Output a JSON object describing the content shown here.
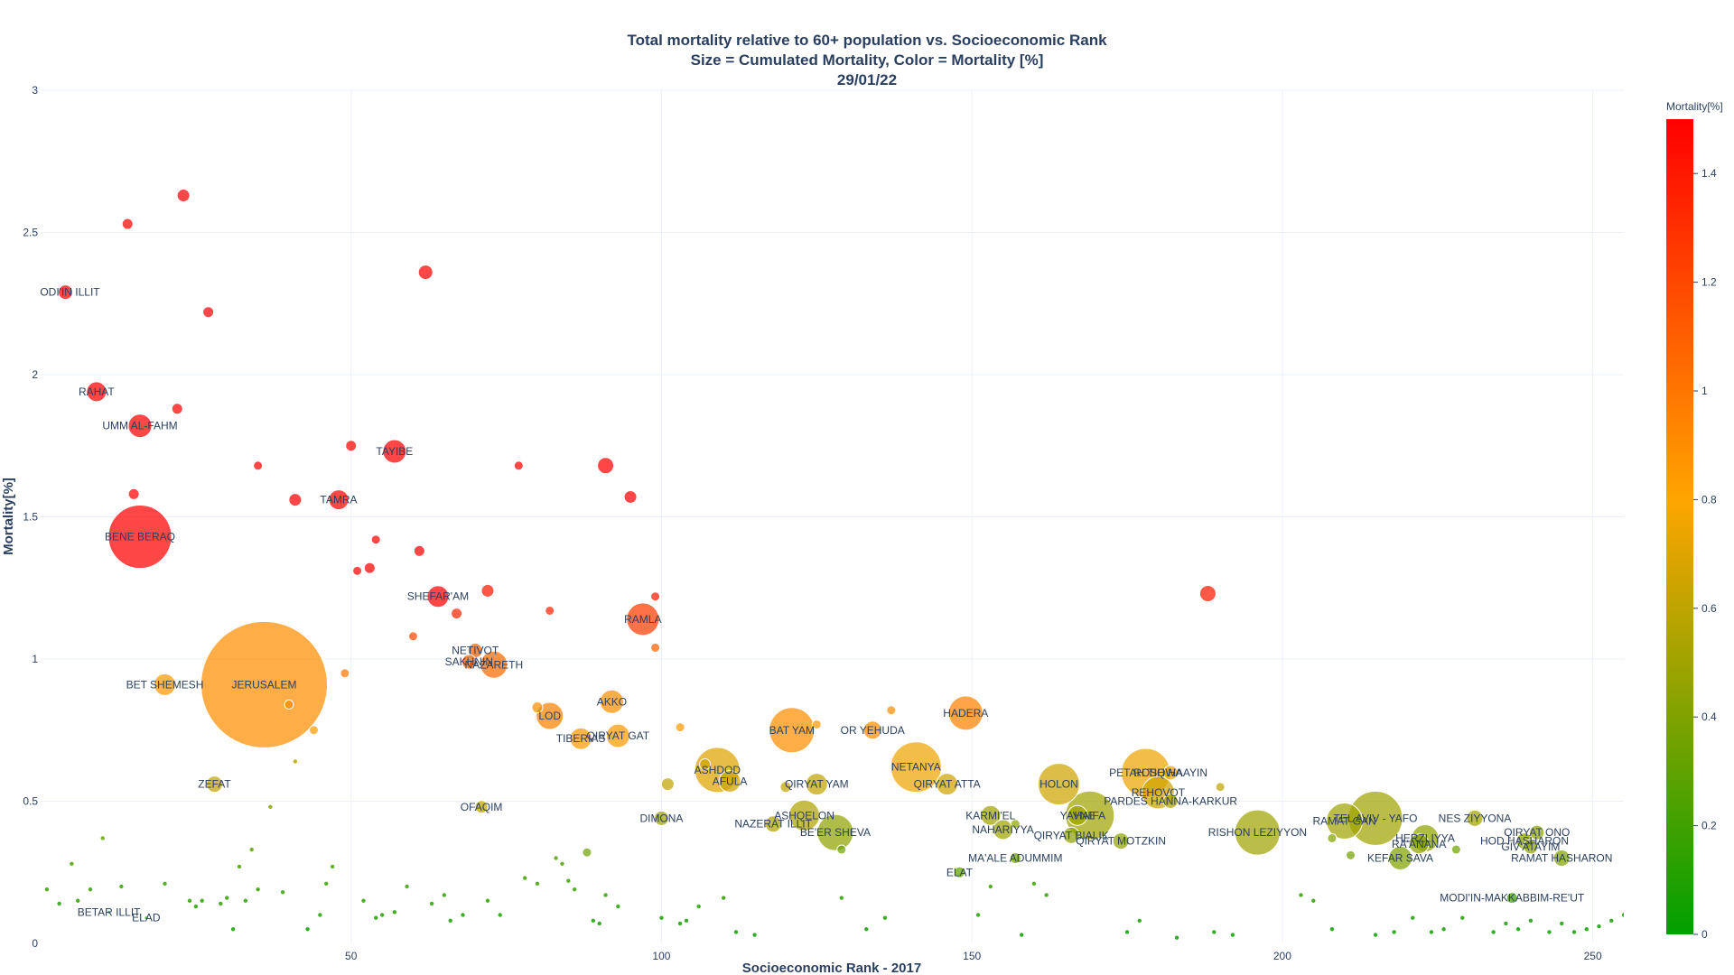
{
  "chart_data": {
    "type": "scatter",
    "title_lines": [
      "Total mortality relative to 60+ population vs. Socioeconomic Rank",
      "Size = Cumulated Mortality, Color = Mortality [%]",
      "29/01/22"
    ],
    "xlabel": "Socioeconomic Rank - 2017",
    "ylabel": "Mortality[%]",
    "xlim": [
      0,
      255
    ],
    "ylim": [
      0,
      3
    ],
    "x_ticks": [
      50,
      100,
      150,
      200,
      250
    ],
    "y_ticks": [
      0,
      0.5,
      1,
      1.5,
      2,
      2.5,
      3
    ],
    "y_tick_labels": [
      "0",
      "0.5",
      "1",
      "1.5",
      "2",
      "2.5",
      "3"
    ],
    "grid": true,
    "colorbar": {
      "title": "Mortality[%]",
      "range": [
        0,
        1.5
      ],
      "ticks": [
        0,
        0.2,
        0.4,
        0.6,
        0.8,
        1,
        1.2,
        1.4
      ],
      "tick_labels": [
        "0",
        "0.2",
        "0.4",
        "0.6",
        "0.8",
        "1",
        "1.2",
        "1.4"
      ],
      "colors": [
        "#00a000",
        "#ffa500",
        "#ff0000"
      ]
    },
    "points": [
      {
        "label": "MODI'IN ILLIT",
        "x": 4,
        "y": 2.29,
        "size": 16,
        "mortality": 1.5
      },
      {
        "label": "RAHAT",
        "x": 9,
        "y": 1.94,
        "size": 22,
        "mortality": 1.5
      },
      {
        "label": "UMM AL-FAHM",
        "x": 16,
        "y": 1.82,
        "size": 26,
        "mortality": 1.5
      },
      {
        "label": "BENE BERAQ",
        "x": 16,
        "y": 1.43,
        "size": 70,
        "mortality": 1.5
      },
      {
        "label": "BET SHEMESH",
        "x": 20,
        "y": 0.91,
        "size": 24,
        "mortality": 0.85
      },
      {
        "label": "ZEFAT",
        "x": 28,
        "y": 0.56,
        "size": 18,
        "mortality": 0.6
      },
      {
        "label": "JERUSALEM",
        "x": 36,
        "y": 0.91,
        "size": 140,
        "mortality": 0.9
      },
      {
        "label": "TAMRA",
        "x": 48,
        "y": 1.56,
        "size": 22,
        "mortality": 1.5
      },
      {
        "label": "TAYIBE",
        "x": 57,
        "y": 1.73,
        "size": 26,
        "mortality": 1.5
      },
      {
        "label": "SHEFAR'AM",
        "x": 64,
        "y": 1.22,
        "size": 24,
        "mortality": 1.5
      },
      {
        "label": "NETIVOT",
        "x": 70,
        "y": 1.03,
        "size": 16,
        "mortality": 1.1
      },
      {
        "label": "SAKHNIN",
        "x": 69,
        "y": 0.99,
        "size": 16,
        "mortality": 1.1
      },
      {
        "label": "NAZARETH",
        "x": 73,
        "y": 0.98,
        "size": 30,
        "mortality": 1.05
      },
      {
        "label": "OFAQIM",
        "x": 71,
        "y": 0.48,
        "size": 14,
        "mortality": 0.6
      },
      {
        "label": "LOD",
        "x": 82,
        "y": 0.8,
        "size": 30,
        "mortality": 0.95
      },
      {
        "label": "TIBERIAS",
        "x": 87,
        "y": 0.72,
        "size": 24,
        "mortality": 0.85
      },
      {
        "label": "QIRYAT GAT",
        "x": 93,
        "y": 0.73,
        "size": 26,
        "mortality": 0.85
      },
      {
        "label": "AKKO",
        "x": 92,
        "y": 0.85,
        "size": 26,
        "mortality": 0.9
      },
      {
        "label": "RAMLA",
        "x": 97,
        "y": 1.14,
        "size": 36,
        "mortality": 1.25
      },
      {
        "label": "DIMONA",
        "x": 100,
        "y": 0.44,
        "size": 16,
        "mortality": 0.5
      },
      {
        "label": "ASHDOD",
        "x": 109,
        "y": 0.61,
        "size": 50,
        "mortality": 0.7
      },
      {
        "label": "AFULA",
        "x": 111,
        "y": 0.57,
        "size": 24,
        "mortality": 0.65
      },
      {
        "label": "BAT YAM",
        "x": 121,
        "y": 0.75,
        "size": 50,
        "mortality": 0.9
      },
      {
        "label": "QIRYAT YAM",
        "x": 125,
        "y": 0.56,
        "size": 24,
        "mortality": 0.6
      },
      {
        "label": "ASHQELON",
        "x": 123,
        "y": 0.45,
        "size": 34,
        "mortality": 0.55
      },
      {
        "label": "NAZERAT ILLIT",
        "x": 118,
        "y": 0.42,
        "size": 18,
        "mortality": 0.55
      },
      {
        "label": "BE'ER SHEVA",
        "x": 128,
        "y": 0.39,
        "size": 40,
        "mortality": 0.45
      },
      {
        "label": "OR YEHUDA",
        "x": 134,
        "y": 0.75,
        "size": 20,
        "mortality": 0.9
      },
      {
        "label": "NETANYA",
        "x": 141,
        "y": 0.62,
        "size": 56,
        "mortality": 0.75
      },
      {
        "label": "QIRYAT ATTA",
        "x": 146,
        "y": 0.56,
        "size": 24,
        "mortality": 0.65
      },
      {
        "label": "HADERA",
        "x": 149,
        "y": 0.81,
        "size": 38,
        "mortality": 0.95
      },
      {
        "label": "ELAT",
        "x": 148,
        "y": 0.25,
        "size": 12,
        "mortality": 0.3
      },
      {
        "label": "KARMI'EL",
        "x": 153,
        "y": 0.45,
        "size": 22,
        "mortality": 0.5
      },
      {
        "label": "NAHARIYYA",
        "x": 155,
        "y": 0.4,
        "size": 22,
        "mortality": 0.5
      },
      {
        "label": "MA'ALE ADUMMIM",
        "x": 157,
        "y": 0.3,
        "size": 12,
        "mortality": 0.35
      },
      {
        "label": "HOLON",
        "x": 164,
        "y": 0.56,
        "size": 46,
        "mortality": 0.65
      },
      {
        "label": "YAVNE",
        "x": 167,
        "y": 0.45,
        "size": 22,
        "mortality": 0.5
      },
      {
        "label": "HAIFA",
        "x": 169,
        "y": 0.45,
        "size": 54,
        "mortality": 0.5
      },
      {
        "label": "QIRYAT BIALIK",
        "x": 166,
        "y": 0.38,
        "size": 18,
        "mortality": 0.45
      },
      {
        "label": "QIRYAT MOTZKIN",
        "x": 174,
        "y": 0.36,
        "size": 18,
        "mortality": 0.45
      },
      {
        "label": "PETAH TIQWA",
        "x": 178,
        "y": 0.6,
        "size": 54,
        "mortality": 0.75
      },
      {
        "label": "ROSH HAAYIN",
        "x": 182,
        "y": 0.6,
        "size": 16,
        "mortality": 0.75
      },
      {
        "label": "REHOVOT",
        "x": 180,
        "y": 0.53,
        "size": 36,
        "mortality": 0.65
      },
      {
        "label": "PARDES HANNA-KARKUR",
        "x": 182,
        "y": 0.5,
        "size": 16,
        "mortality": 0.55
      },
      {
        "label": "RISHON LEZIYYON",
        "x": 196,
        "y": 0.39,
        "size": 50,
        "mortality": 0.5
      },
      {
        "label": "RAMAT GAN",
        "x": 210,
        "y": 0.43,
        "size": 40,
        "mortality": 0.5
      },
      {
        "label": "TEL AVIV - YAFO",
        "x": 215,
        "y": 0.44,
        "size": 60,
        "mortality": 0.5
      },
      {
        "label": "KEFAR SAVA",
        "x": 219,
        "y": 0.3,
        "size": 26,
        "mortality": 0.4
      },
      {
        "label": "HERZLIYYA",
        "x": 223,
        "y": 0.37,
        "size": 30,
        "mortality": 0.45
      },
      {
        "label": "RA'ANANA",
        "x": 222,
        "y": 0.35,
        "size": 22,
        "mortality": 0.45
      },
      {
        "label": "NES ZIYYONA",
        "x": 231,
        "y": 0.44,
        "size": 18,
        "mortality": 0.5
      },
      {
        "label": "QIRYAT ONO",
        "x": 241,
        "y": 0.39,
        "size": 16,
        "mortality": 0.45
      },
      {
        "label": "HOD HASHARON",
        "x": 239,
        "y": 0.36,
        "size": 18,
        "mortality": 0.45
      },
      {
        "label": "GIV'ATAYIM",
        "x": 240,
        "y": 0.34,
        "size": 16,
        "mortality": 0.45
      },
      {
        "label": "RAMAT HASHARON",
        "x": 245,
        "y": 0.3,
        "size": 18,
        "mortality": 0.4
      },
      {
        "label": "MODI'IN-MAKKABBIM-RE'UT",
        "x": 237,
        "y": 0.16,
        "size": 12,
        "mortality": 0.2
      },
      {
        "label": "BETAR ILLIT",
        "x": 11,
        "y": 0.11,
        "size": 4,
        "mortality": 0.1
      },
      {
        "label": "ELAD",
        "x": 17,
        "y": 0.09,
        "size": 4,
        "mortality": 0.1
      },
      {
        "label": "",
        "x": 14,
        "y": 2.53,
        "size": 12,
        "mortality": 1.5
      },
      {
        "label": "",
        "x": 23,
        "y": 2.63,
        "size": 14,
        "mortality": 1.5
      },
      {
        "label": "",
        "x": 27,
        "y": 2.22,
        "size": 12,
        "mortality": 1.5
      },
      {
        "label": "",
        "x": 62,
        "y": 2.36,
        "size": 16,
        "mortality": 1.5
      },
      {
        "label": "",
        "x": 22,
        "y": 1.88,
        "size": 12,
        "mortality": 1.5
      },
      {
        "label": "",
        "x": 15,
        "y": 1.58,
        "size": 12,
        "mortality": 1.5
      },
      {
        "label": "",
        "x": 35,
        "y": 1.68,
        "size": 10,
        "mortality": 1.5
      },
      {
        "label": "",
        "x": 41,
        "y": 1.56,
        "size": 14,
        "mortality": 1.5
      },
      {
        "label": "",
        "x": 50,
        "y": 1.75,
        "size": 12,
        "mortality": 1.5
      },
      {
        "label": "",
        "x": 77,
        "y": 1.68,
        "size": 10,
        "mortality": 1.5
      },
      {
        "label": "",
        "x": 91,
        "y": 1.68,
        "size": 18,
        "mortality": 1.5
      },
      {
        "label": "",
        "x": 95,
        "y": 1.57,
        "size": 14,
        "mortality": 1.5
      },
      {
        "label": "",
        "x": 54,
        "y": 1.42,
        "size": 10,
        "mortality": 1.5
      },
      {
        "label": "",
        "x": 61,
        "y": 1.38,
        "size": 12,
        "mortality": 1.5
      },
      {
        "label": "",
        "x": 51,
        "y": 1.31,
        "size": 10,
        "mortality": 1.5
      },
      {
        "label": "",
        "x": 53,
        "y": 1.32,
        "size": 12,
        "mortality": 1.5
      },
      {
        "label": "",
        "x": 72,
        "y": 1.24,
        "size": 14,
        "mortality": 1.4
      },
      {
        "label": "",
        "x": 82,
        "y": 1.17,
        "size": 10,
        "mortality": 1.35
      },
      {
        "label": "",
        "x": 67,
        "y": 1.16,
        "size": 12,
        "mortality": 1.35
      },
      {
        "label": "",
        "x": 60,
        "y": 1.08,
        "size": 10,
        "mortality": 1.2
      },
      {
        "label": "",
        "x": 99,
        "y": 1.22,
        "size": 10,
        "mortality": 1.4
      },
      {
        "label": "",
        "x": 99,
        "y": 1.04,
        "size": 10,
        "mortality": 1.1
      },
      {
        "label": "",
        "x": 188,
        "y": 1.23,
        "size": 18,
        "mortality": 1.4
      },
      {
        "label": "",
        "x": 49,
        "y": 0.95,
        "size": 10,
        "mortality": 1.0
      },
      {
        "label": "",
        "x": 40,
        "y": 0.84,
        "size": 10,
        "mortality": 0.9
      },
      {
        "label": "",
        "x": 44,
        "y": 0.75,
        "size": 10,
        "mortality": 0.85
      },
      {
        "label": "",
        "x": 80,
        "y": 0.83,
        "size": 12,
        "mortality": 0.9
      },
      {
        "label": "",
        "x": 103,
        "y": 0.76,
        "size": 10,
        "mortality": 0.85
      },
      {
        "label": "",
        "x": 125,
        "y": 0.77,
        "size": 10,
        "mortality": 0.85
      },
      {
        "label": "",
        "x": 137,
        "y": 0.82,
        "size": 10,
        "mortality": 0.9
      },
      {
        "label": "",
        "x": 101,
        "y": 0.56,
        "size": 14,
        "mortality": 0.6
      },
      {
        "label": "",
        "x": 107,
        "y": 0.63,
        "size": 12,
        "mortality": 0.65
      },
      {
        "label": "",
        "x": 120,
        "y": 0.55,
        "size": 12,
        "mortality": 0.6
      },
      {
        "label": "",
        "x": 190,
        "y": 0.55,
        "size": 10,
        "mortality": 0.6
      },
      {
        "label": "",
        "x": 88,
        "y": 0.32,
        "size": 10,
        "mortality": 0.35
      },
      {
        "label": "",
        "x": 129,
        "y": 0.33,
        "size": 10,
        "mortality": 0.35
      },
      {
        "label": "",
        "x": 157,
        "y": 0.42,
        "size": 10,
        "mortality": 0.45
      },
      {
        "label": "",
        "x": 211,
        "y": 0.31,
        "size": 10,
        "mortality": 0.35
      },
      {
        "label": "",
        "x": 228,
        "y": 0.33,
        "size": 10,
        "mortality": 0.35
      },
      {
        "label": "",
        "x": 208,
        "y": 0.37,
        "size": 10,
        "mortality": 0.4
      }
    ],
    "small_points": [
      [
        1,
        0.19
      ],
      [
        3,
        0.14
      ],
      [
        5,
        0.28
      ],
      [
        6,
        0.15
      ],
      [
        8,
        0.19
      ],
      [
        10,
        0.37
      ],
      [
        13,
        0.2
      ],
      [
        20,
        0.21
      ],
      [
        24,
        0.15
      ],
      [
        25,
        0.13
      ],
      [
        26,
        0.15
      ],
      [
        29,
        0.14
      ],
      [
        30,
        0.16
      ],
      [
        31,
        0.05
      ],
      [
        32,
        0.27
      ],
      [
        33,
        0.15
      ],
      [
        34,
        0.33
      ],
      [
        35,
        0.19
      ],
      [
        37,
        0.48
      ],
      [
        39,
        0.18
      ],
      [
        41,
        0.64
      ],
      [
        43,
        0.05
      ],
      [
        45,
        0.1
      ],
      [
        46,
        0.21
      ],
      [
        47,
        0.27
      ],
      [
        52,
        0.15
      ],
      [
        54,
        0.09
      ],
      [
        55,
        0.1
      ],
      [
        57,
        0.11
      ],
      [
        59,
        0.2
      ],
      [
        63,
        0.14
      ],
      [
        65,
        0.17
      ],
      [
        66,
        0.08
      ],
      [
        68,
        0.1
      ],
      [
        72,
        0.15
      ],
      [
        74,
        0.1
      ],
      [
        78,
        0.23
      ],
      [
        80,
        0.21
      ],
      [
        83,
        0.3
      ],
      [
        84,
        0.28
      ],
      [
        85,
        0.22
      ],
      [
        86,
        0.19
      ],
      [
        89,
        0.08
      ],
      [
        90,
        0.07
      ],
      [
        91,
        0.17
      ],
      [
        93,
        0.13
      ],
      [
        100,
        0.09
      ],
      [
        103,
        0.07
      ],
      [
        104,
        0.08
      ],
      [
        106,
        0.13
      ],
      [
        110,
        0.16
      ],
      [
        112,
        0.04
      ],
      [
        115,
        0.03
      ],
      [
        129,
        0.16
      ],
      [
        133,
        0.05
      ],
      [
        136,
        0.09
      ],
      [
        151,
        0.1
      ],
      [
        153,
        0.2
      ],
      [
        158,
        0.03
      ],
      [
        160,
        0.21
      ],
      [
        162,
        0.17
      ],
      [
        175,
        0.04
      ],
      [
        177,
        0.08
      ],
      [
        183,
        0.02
      ],
      [
        189,
        0.04
      ],
      [
        192,
        0.03
      ],
      [
        203,
        0.17
      ],
      [
        205,
        0.15
      ],
      [
        208,
        0.05
      ],
      [
        215,
        0.03
      ],
      [
        218,
        0.04
      ],
      [
        221,
        0.09
      ],
      [
        224,
        0.04
      ],
      [
        226,
        0.05
      ],
      [
        229,
        0.09
      ],
      [
        234,
        0.04
      ],
      [
        236,
        0.07
      ],
      [
        238,
        0.05
      ],
      [
        240,
        0.08
      ],
      [
        243,
        0.04
      ],
      [
        245,
        0.07
      ],
      [
        247,
        0.04
      ],
      [
        249,
        0.05
      ],
      [
        251,
        0.06
      ],
      [
        253,
        0.08
      ],
      [
        255,
        0.1
      ]
    ]
  }
}
